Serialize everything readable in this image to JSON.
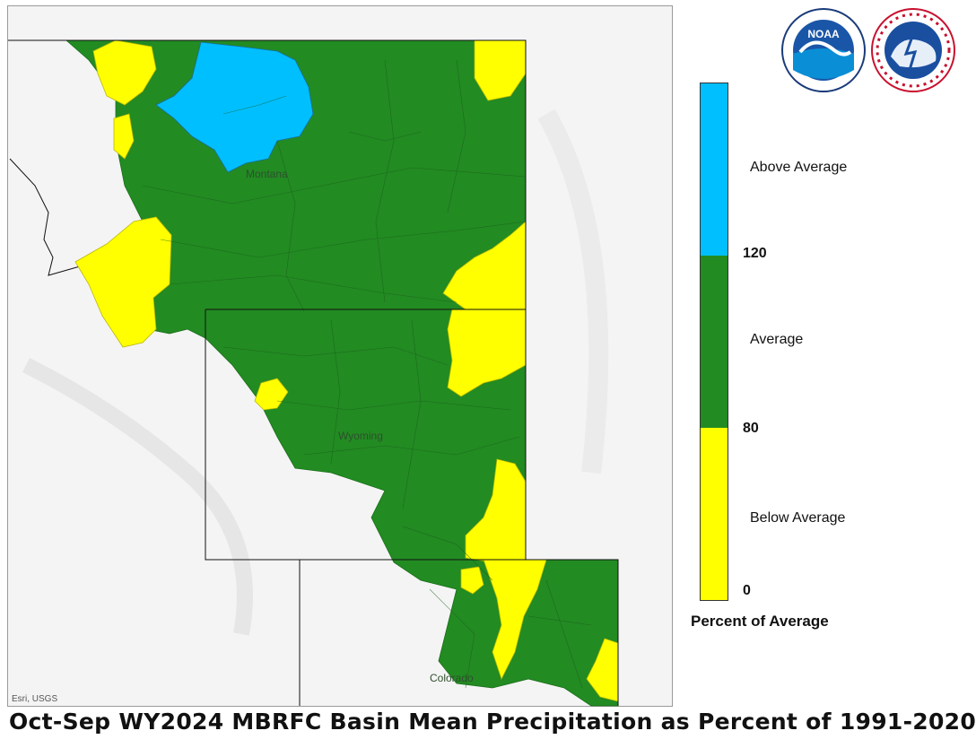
{
  "title": "Oct-Sep WY2024 MBRFC Basin Mean Precipitation as Percent of 1991-2020",
  "map": {
    "state_labels": {
      "montana": "Montana",
      "wyoming": "Wyoming",
      "colorado": "Colorado"
    },
    "attribution": "Esri, USGS",
    "colors": {
      "above": "#00BFFF",
      "average": "#228B22",
      "below": "#FFFF00",
      "basemap": "#f3f3f3"
    }
  },
  "legend": {
    "title": "Percent of Average",
    "categories": {
      "above": "Above Average",
      "average": "Average",
      "below": "Below Average"
    },
    "ticks": {
      "t120": "120",
      "t80": "80",
      "t0": "0"
    }
  },
  "logos": {
    "noara": "noaa-logo",
    "nws": "nws-logo",
    "noaa_text": "NOAA"
  }
}
